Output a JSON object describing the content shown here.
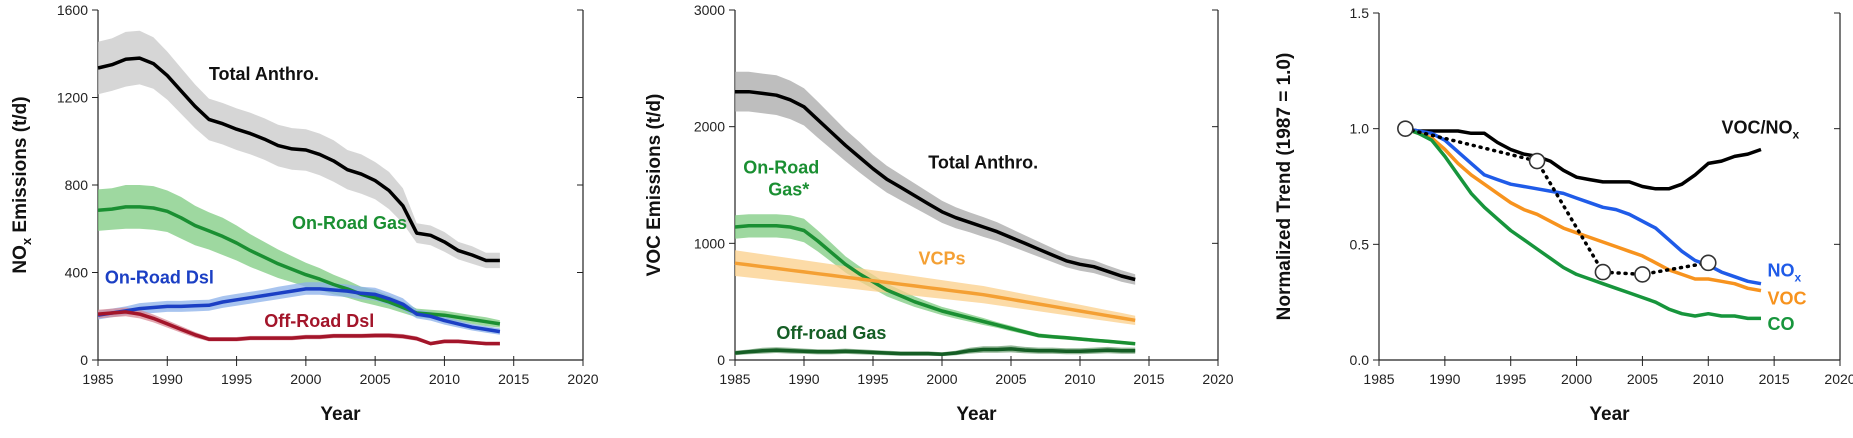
{
  "chart_data": [
    {
      "type": "line",
      "xlabel": "Year",
      "ylabel": "NOx Emissions (t/d)",
      "ylabel_main": "NO",
      "ylabel_sub": "x",
      "ylabel_rest": " Emissions (t/d)",
      "xlim": [
        1985,
        2020
      ],
      "ylim": [
        0,
        1600
      ],
      "xticks": [
        1985,
        1990,
        1995,
        2000,
        2005,
        2010,
        2015,
        2020
      ],
      "yticks": [
        0,
        400,
        800,
        1200,
        1600
      ],
      "x": [
        1985,
        1986,
        1987,
        1988,
        1989,
        1990,
        1991,
        1992,
        1993,
        1994,
        1995,
        1996,
        1997,
        1998,
        1999,
        2000,
        2001,
        2002,
        2003,
        2004,
        2005,
        2006,
        2007,
        2008,
        2009,
        2010,
        2011,
        2012,
        2013,
        2014
      ],
      "series": [
        {
          "name": "Total Anthro.",
          "color": "#000000",
          "band_color": "#c8c8c8",
          "values": [
            1335,
            1350,
            1375,
            1380,
            1355,
            1300,
            1230,
            1160,
            1100,
            1080,
            1055,
            1035,
            1010,
            980,
            965,
            960,
            940,
            910,
            870,
            850,
            820,
            775,
            705,
            580,
            570,
            540,
            500,
            480,
            455,
            455
          ],
          "lower": [
            1215,
            1230,
            1250,
            1260,
            1240,
            1190,
            1125,
            1060,
            1005,
            985,
            960,
            940,
            915,
            885,
            870,
            865,
            845,
            815,
            780,
            760,
            735,
            690,
            625,
            535,
            525,
            495,
            460,
            440,
            420,
            420
          ],
          "upper": [
            1455,
            1470,
            1500,
            1505,
            1475,
            1410,
            1335,
            1260,
            1195,
            1175,
            1150,
            1130,
            1105,
            1075,
            1060,
            1055,
            1035,
            1005,
            960,
            940,
            905,
            860,
            785,
            625,
            615,
            585,
            540,
            520,
            490,
            490
          ]
        },
        {
          "name": "On-Road Gas",
          "color": "#1a8f32",
          "band_color": "#7dcb80",
          "values": [
            685,
            690,
            700,
            700,
            695,
            680,
            650,
            615,
            590,
            565,
            535,
            500,
            470,
            440,
            415,
            390,
            370,
            345,
            325,
            300,
            285,
            265,
            240,
            215,
            210,
            205,
            195,
            185,
            175,
            165
          ],
          "lower": [
            590,
            595,
            600,
            600,
            595,
            585,
            555,
            525,
            505,
            480,
            455,
            425,
            400,
            375,
            355,
            335,
            320,
            300,
            285,
            265,
            250,
            235,
            215,
            195,
            190,
            185,
            175,
            165,
            155,
            148
          ],
          "upper": [
            780,
            785,
            800,
            800,
            795,
            775,
            745,
            705,
            675,
            650,
            615,
            575,
            540,
            505,
            475,
            445,
            420,
            390,
            365,
            335,
            320,
            295,
            265,
            235,
            230,
            225,
            215,
            205,
            195,
            182
          ]
        },
        {
          "name": "On-Road Dsl",
          "color": "#1b3fc4",
          "band_color": "#8bb0ea",
          "values": [
            205,
            215,
            225,
            235,
            240,
            245,
            245,
            248,
            250,
            265,
            275,
            285,
            295,
            305,
            315,
            325,
            325,
            320,
            315,
            305,
            300,
            280,
            255,
            210,
            200,
            180,
            165,
            150,
            140,
            130
          ],
          "lower": [
            185,
            195,
            205,
            210,
            215,
            220,
            220,
            222,
            225,
            238,
            248,
            258,
            268,
            278,
            288,
            298,
            298,
            292,
            288,
            278,
            272,
            252,
            228,
            190,
            180,
            162,
            148,
            135,
            125,
            115
          ],
          "upper": [
            225,
            235,
            245,
            260,
            265,
            270,
            270,
            274,
            275,
            292,
            302,
            312,
            322,
            335,
            345,
            355,
            355,
            350,
            345,
            335,
            330,
            308,
            282,
            230,
            220,
            198,
            182,
            165,
            155,
            145
          ]
        },
        {
          "name": "Off-Road Dsl",
          "color": "#a3152a",
          "band_color": "#d88a95",
          "values": [
            210,
            215,
            220,
            210,
            190,
            165,
            140,
            115,
            95,
            95,
            95,
            100,
            100,
            100,
            100,
            105,
            105,
            110,
            110,
            110,
            112,
            112,
            108,
            98,
            75,
            85,
            85,
            80,
            75,
            75
          ],
          "lower": [
            190,
            195,
            200,
            190,
            172,
            148,
            125,
            102,
            85,
            85,
            85,
            90,
            90,
            90,
            90,
            95,
            95,
            100,
            100,
            100,
            101,
            101,
            97,
            88,
            67,
            76,
            76,
            72,
            67,
            67
          ],
          "upper": [
            230,
            235,
            240,
            230,
            208,
            182,
            155,
            128,
            105,
            105,
            105,
            110,
            110,
            110,
            110,
            115,
            115,
            120,
            120,
            120,
            123,
            123,
            119,
            108,
            83,
            94,
            94,
            88,
            83,
            83
          ]
        }
      ]
    },
    {
      "type": "line",
      "xlabel": "Year",
      "ylabel": "VOC Emissions (t/d)",
      "xlim": [
        1985,
        2020
      ],
      "ylim": [
        0,
        3000
      ],
      "xticks": [
        1985,
        1990,
        1995,
        2000,
        2005,
        2010,
        2015,
        2020
      ],
      "yticks": [
        0,
        1000,
        2000,
        3000
      ],
      "x": [
        1985,
        1986,
        1987,
        1988,
        1989,
        1990,
        1991,
        1992,
        1993,
        1994,
        1995,
        1996,
        1997,
        1998,
        1999,
        2000,
        2001,
        2002,
        2003,
        2004,
        2005,
        2006,
        2007,
        2008,
        2009,
        2010,
        2011,
        2012,
        2013,
        2014
      ],
      "series": [
        {
          "name": "Total Anthro.",
          "color": "#000000",
          "band_color": "#a8a8a8",
          "values": [
            2300,
            2300,
            2285,
            2270,
            2230,
            2170,
            2060,
            1950,
            1840,
            1740,
            1640,
            1550,
            1480,
            1410,
            1340,
            1270,
            1220,
            1180,
            1140,
            1100,
            1050,
            1000,
            950,
            900,
            850,
            820,
            800,
            760,
            720,
            690
          ],
          "lower": [
            2130,
            2130,
            2115,
            2100,
            2065,
            2010,
            1905,
            1805,
            1705,
            1610,
            1520,
            1435,
            1370,
            1305,
            1240,
            1175,
            1130,
            1095,
            1055,
            1020,
            975,
            930,
            885,
            840,
            795,
            765,
            745,
            710,
            670,
            645
          ],
          "upper": [
            2470,
            2470,
            2455,
            2440,
            2395,
            2330,
            2215,
            2095,
            1975,
            1870,
            1760,
            1665,
            1590,
            1515,
            1440,
            1365,
            1310,
            1265,
            1225,
            1180,
            1125,
            1070,
            1015,
            960,
            905,
            875,
            855,
            810,
            770,
            735
          ]
        },
        {
          "name": "On-Road Gas*",
          "color": "#1a8f32",
          "band_color": "#7dcb80",
          "values": [
            1140,
            1150,
            1150,
            1150,
            1140,
            1110,
            1020,
            920,
            820,
            740,
            670,
            600,
            550,
            500,
            460,
            420,
            390,
            360,
            330,
            300,
            270,
            240,
            210,
            200,
            190,
            180,
            170,
            160,
            150,
            140
          ],
          "lower": [
            1040,
            1050,
            1050,
            1050,
            1040,
            1010,
            930,
            840,
            750,
            675,
            610,
            545,
            500,
            455,
            420,
            385,
            355,
            328,
            300,
            275,
            247,
            220,
            192,
            183,
            173,
            164,
            155,
            146,
            137,
            127
          ],
          "upper": [
            1240,
            1250,
            1250,
            1250,
            1240,
            1210,
            1110,
            1000,
            890,
            805,
            730,
            655,
            600,
            545,
            500,
            455,
            425,
            392,
            360,
            325,
            293,
            260,
            228,
            217,
            207,
            196,
            185,
            174,
            163,
            153
          ]
        },
        {
          "name": "VCPs",
          "color": "#f4a034",
          "band_color": "#fbcf8a",
          "values": [
            830,
            815,
            800,
            785,
            770,
            755,
            740,
            725,
            710,
            695,
            680,
            665,
            650,
            635,
            620,
            605,
            590,
            575,
            560,
            540,
            520,
            500,
            480,
            460,
            440,
            420,
            400,
            380,
            360,
            340
          ],
          "lower": [
            720,
            707,
            694,
            681,
            668,
            655,
            642,
            629,
            616,
            603,
            590,
            577,
            564,
            551,
            538,
            525,
            512,
            499,
            486,
            469,
            452,
            435,
            418,
            401,
            384,
            367,
            350,
            333,
            316,
            300
          ],
          "upper": [
            940,
            923,
            906,
            889,
            872,
            855,
            838,
            821,
            804,
            787,
            770,
            753,
            736,
            719,
            702,
            685,
            668,
            651,
            634,
            611,
            588,
            565,
            542,
            519,
            496,
            473,
            450,
            427,
            404,
            380
          ]
        },
        {
          "name": "Off-road Gas",
          "color": "#155e25",
          "band_color": "#6f9f74",
          "values": [
            60,
            70,
            80,
            85,
            80,
            75,
            70,
            70,
            75,
            70,
            65,
            60,
            55,
            55,
            55,
            50,
            60,
            80,
            90,
            90,
            95,
            85,
            80,
            80,
            75,
            75,
            80,
            85,
            80,
            80
          ],
          "lower": [
            40,
            50,
            55,
            60,
            55,
            52,
            48,
            48,
            52,
            48,
            44,
            40,
            36,
            36,
            36,
            33,
            40,
            55,
            62,
            62,
            65,
            58,
            54,
            54,
            50,
            50,
            54,
            58,
            54,
            54
          ],
          "upper": [
            80,
            90,
            105,
            110,
            105,
            98,
            92,
            92,
            98,
            92,
            86,
            80,
            74,
            74,
            74,
            67,
            80,
            105,
            118,
            118,
            125,
            112,
            106,
            106,
            100,
            100,
            106,
            112,
            106,
            106
          ]
        }
      ]
    },
    {
      "type": "line",
      "xlabel": "Year",
      "ylabel": "Normalized Trend (1987 = 1.0)",
      "xlim": [
        1985,
        2020
      ],
      "ylim": [
        0,
        1.5
      ],
      "xticks": [
        1985,
        1990,
        1995,
        2000,
        2005,
        2010,
        2015,
        2020
      ],
      "yticks": [
        "0.0",
        "0.5",
        "1.0",
        "1.5"
      ],
      "x": [
        1987,
        1988,
        1989,
        1990,
        1991,
        1992,
        1993,
        1994,
        1995,
        1996,
        1997,
        1998,
        1999,
        2000,
        2001,
        2002,
        2003,
        2004,
        2005,
        2006,
        2007,
        2008,
        2009,
        2010,
        2011,
        2012,
        2013,
        2014
      ],
      "series": [
        {
          "name": "VOC/NOx",
          "label_main": "VOC/NO",
          "label_sub": "x",
          "color": "#000000",
          "values": [
            1.0,
            0.99,
            0.99,
            0.99,
            0.99,
            0.98,
            0.98,
            0.94,
            0.91,
            0.89,
            0.88,
            0.86,
            0.82,
            0.79,
            0.78,
            0.77,
            0.77,
            0.77,
            0.75,
            0.74,
            0.74,
            0.76,
            0.8,
            0.85,
            0.86,
            0.88,
            0.89,
            0.91
          ]
        },
        {
          "name": "NOx",
          "label_main": "NO",
          "label_sub": "x",
          "color": "#1f5be8",
          "values": [
            1.0,
            0.99,
            0.98,
            0.95,
            0.9,
            0.85,
            0.8,
            0.78,
            0.76,
            0.75,
            0.74,
            0.73,
            0.72,
            0.7,
            0.68,
            0.66,
            0.65,
            0.63,
            0.6,
            0.57,
            0.52,
            0.47,
            0.43,
            0.41,
            0.38,
            0.36,
            0.34,
            0.33
          ]
        },
        {
          "name": "VOC",
          "color": "#f7931e",
          "values": [
            1.0,
            0.98,
            0.96,
            0.91,
            0.85,
            0.8,
            0.76,
            0.72,
            0.68,
            0.65,
            0.63,
            0.6,
            0.57,
            0.55,
            0.53,
            0.51,
            0.49,
            0.47,
            0.45,
            0.42,
            0.39,
            0.37,
            0.35,
            0.35,
            0.34,
            0.33,
            0.31,
            0.3
          ]
        },
        {
          "name": "CO",
          "color": "#17953c",
          "values": [
            1.0,
            0.98,
            0.95,
            0.88,
            0.8,
            0.72,
            0.66,
            0.61,
            0.56,
            0.52,
            0.48,
            0.44,
            0.4,
            0.37,
            0.35,
            0.33,
            0.31,
            0.29,
            0.27,
            0.25,
            0.22,
            0.2,
            0.19,
            0.2,
            0.19,
            0.19,
            0.18,
            0.18
          ]
        },
        {
          "name": "dotted",
          "color": "#000000",
          "dotted": true,
          "points": [
            [
              1987,
              1.0
            ],
            [
              1997,
              0.86
            ],
            [
              2002,
              0.38
            ],
            [
              2005,
              0.37
            ],
            [
              2010,
              0.42
            ]
          ]
        }
      ]
    }
  ]
}
